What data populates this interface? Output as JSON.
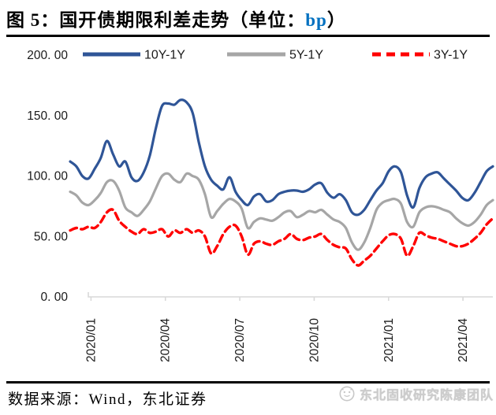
{
  "title": {
    "prefix": "图 5：国开债期限利差走势（单位：",
    "unit": "bp",
    "suffix": "）"
  },
  "footer": {
    "source": "数据来源：Wind，东北证券",
    "badge": "东北固收研究陈康团队"
  },
  "colors": {
    "title_unit_blue": "#0070C0",
    "series_blue": "#2F5597",
    "series_gray": "#A6A6A6",
    "series_red": "#FF0000",
    "axis_gray": "#D9D9D9",
    "badge_gray": "#CCCCCC"
  },
  "chart_data": {
    "type": "line",
    "title": "图 5：国开债期限利差走势（单位：bp）",
    "xlabel": "",
    "ylabel": "",
    "ylim": [
      0,
      200
    ],
    "grid": false,
    "legend_position": "top",
    "axis_color": "#D9D9D9",
    "tick_label_color": "#1a1a1a",
    "x_ticks": [
      "2020/01",
      "2020/04",
      "2020/07",
      "2020/10",
      "2021/01",
      "2021/04"
    ],
    "y_ticks": [
      {
        "value": 200,
        "label": "200. 00"
      },
      {
        "value": 150,
        "label": "150. 00"
      },
      {
        "value": 100,
        "label": "100. 00"
      },
      {
        "value": 50,
        "label": "50. 00"
      },
      {
        "value": 0,
        "label": "0. 00"
      }
    ],
    "series": [
      {
        "name": "10Y-1Y",
        "color": "#2F5597",
        "style": "solid",
        "values": [
          112,
          108,
          100,
          98,
          106,
          115,
          129,
          118,
          108,
          112,
          99,
          96,
          103,
          117,
          140,
          158,
          160,
          159,
          163,
          161,
          152,
          128,
          108,
          97,
          92,
          89,
          99,
          87,
          80,
          76,
          83,
          85,
          79,
          80,
          85,
          87,
          88,
          88,
          87,
          89,
          93,
          94,
          86,
          82,
          85,
          80,
          70,
          68,
          72,
          80,
          88,
          94,
          104,
          108,
          103,
          84,
          74,
          90,
          99,
          102,
          103,
          98,
          93,
          88,
          82,
          80,
          86,
          95,
          104,
          108
        ]
      },
      {
        "name": "5Y-1Y",
        "color": "#A6A6A6",
        "style": "solid",
        "values": [
          87,
          84,
          78,
          76,
          80,
          86,
          95,
          96,
          88,
          74,
          70,
          67,
          72,
          79,
          90,
          100,
          102,
          97,
          95,
          102,
          100,
          97,
          85,
          66,
          71,
          77,
          81,
          79,
          73,
          57,
          62,
          65,
          64,
          63,
          66,
          70,
          71,
          66,
          68,
          71,
          70,
          72,
          68,
          64,
          62,
          57,
          45,
          39,
          45,
          57,
          72,
          78,
          80,
          81,
          77,
          62,
          58,
          70,
          74,
          75,
          74,
          72,
          70,
          65,
          61,
          59,
          62,
          68,
          76,
          80
        ]
      },
      {
        "name": "3Y-1Y",
        "color": "#FF0000",
        "style": "dashed",
        "values": [
          55,
          57,
          56,
          58,
          57,
          62,
          70,
          72,
          63,
          58,
          54,
          52,
          56,
          53,
          54,
          56,
          50,
          55,
          53,
          56,
          53,
          55,
          50,
          36,
          42,
          52,
          58,
          59,
          50,
          35,
          44,
          46,
          44,
          43,
          46,
          48,
          52,
          48,
          47,
          49,
          50,
          52,
          47,
          43,
          41,
          40,
          31,
          26,
          30,
          34,
          40,
          46,
          51,
          52,
          48,
          34,
          42,
          53,
          51,
          49,
          48,
          46,
          44,
          42,
          42,
          44,
          48,
          53,
          60,
          65
        ]
      }
    ]
  }
}
